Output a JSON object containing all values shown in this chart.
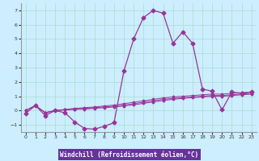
{
  "xlabel": "Windchill (Refroidissement éolien,°C)",
  "background_color": "#cceeff",
  "grid_color": "#aaddcc",
  "line_color": "#993399",
  "xlabel_bg": "#663399",
  "xlabel_fg": "#ffffff",
  "x_values": [
    0,
    1,
    2,
    3,
    4,
    5,
    6,
    7,
    8,
    9,
    10,
    11,
    12,
    13,
    14,
    15,
    16,
    17,
    18,
    19,
    20,
    21,
    22,
    23
  ],
  "series1": [
    -0.2,
    0.35,
    -0.35,
    0.0,
    -0.15,
    -0.8,
    -1.25,
    -1.3,
    -1.1,
    -0.85,
    2.75,
    5.0,
    6.5,
    7.0,
    6.8,
    4.7,
    5.5,
    4.7,
    1.5,
    1.35,
    0.05,
    1.3,
    1.2,
    1.3
  ],
  "series2": [
    0.0,
    0.35,
    -0.15,
    0.0,
    0.05,
    0.08,
    0.1,
    0.15,
    0.2,
    0.25,
    0.32,
    0.4,
    0.5,
    0.6,
    0.7,
    0.78,
    0.85,
    0.9,
    0.95,
    1.0,
    1.0,
    1.05,
    1.1,
    1.15
  ],
  "series3": [
    0.0,
    0.35,
    -0.15,
    0.0,
    0.05,
    0.1,
    0.15,
    0.2,
    0.25,
    0.3,
    0.38,
    0.48,
    0.58,
    0.68,
    0.78,
    0.85,
    0.9,
    0.95,
    1.0,
    1.05,
    1.05,
    1.1,
    1.15,
    1.2
  ],
  "series4": [
    0.0,
    0.35,
    -0.15,
    0.0,
    0.08,
    0.15,
    0.2,
    0.25,
    0.32,
    0.38,
    0.48,
    0.58,
    0.68,
    0.78,
    0.88,
    0.95,
    1.0,
    1.05,
    1.1,
    1.15,
    1.15,
    1.2,
    1.25,
    1.3
  ],
  "ylim": [
    -1.5,
    7.5
  ],
  "xlim": [
    -0.5,
    23.5
  ],
  "yticks": [
    -1,
    0,
    1,
    2,
    3,
    4,
    5,
    6,
    7
  ],
  "xticks": [
    0,
    1,
    2,
    3,
    4,
    5,
    6,
    7,
    8,
    9,
    10,
    11,
    12,
    13,
    14,
    15,
    16,
    17,
    18,
    19,
    20,
    21,
    22,
    23
  ]
}
